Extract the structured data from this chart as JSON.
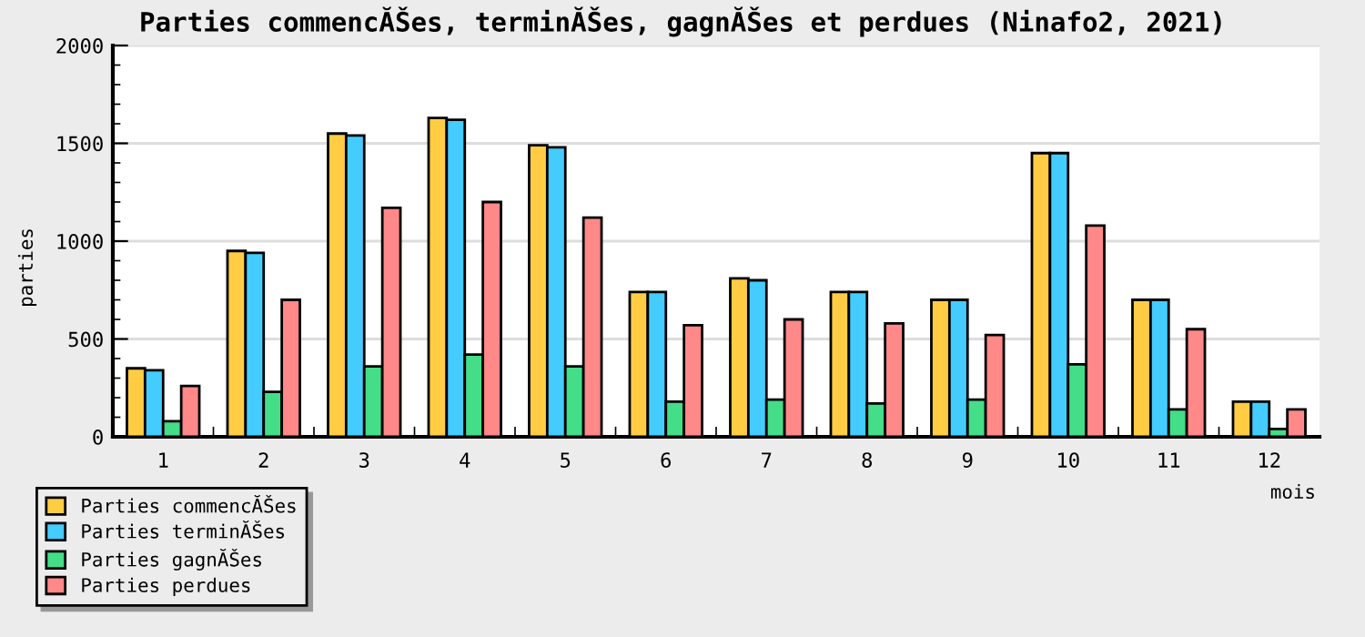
{
  "chart_data": {
    "type": "bar",
    "title": "Parties commencĂŠes, terminĂŠes, gagnĂŠes et perdues (Ninafo2, 2021)",
    "xlabel": "mois",
    "ylabel": "parties",
    "categories": [
      "1",
      "2",
      "3",
      "4",
      "5",
      "6",
      "7",
      "8",
      "9",
      "10",
      "11",
      "12"
    ],
    "series": [
      {
        "name": "Parties commencĂŠes",
        "color": "#ffcc44",
        "values": [
          350,
          950,
          1550,
          1630,
          1490,
          740,
          810,
          740,
          700,
          1450,
          700,
          180
        ]
      },
      {
        "name": "Parties terminĂŠes",
        "color": "#44ccff",
        "values": [
          340,
          940,
          1540,
          1620,
          1480,
          740,
          800,
          740,
          700,
          1450,
          700,
          180
        ]
      },
      {
        "name": "Parties gagnĂŠes",
        "color": "#44dd88",
        "values": [
          80,
          230,
          360,
          420,
          360,
          180,
          190,
          170,
          190,
          370,
          140,
          40
        ]
      },
      {
        "name": "Parties perdues",
        "color": "#ff8888",
        "values": [
          260,
          700,
          1170,
          1200,
          1120,
          570,
          600,
          580,
          520,
          1080,
          550,
          140
        ]
      }
    ],
    "ylim": [
      0,
      2000
    ],
    "yticks": [
      0,
      {
        "value": 100,
        "label": null
      },
      {
        "value": 200,
        "label": null
      },
      {
        "value": 300,
        "label": null
      },
      {
        "value": 400,
        "label": null
      },
      500,
      {
        "value": 600,
        "label": null
      },
      {
        "value": 700,
        "label": null
      },
      {
        "value": 800,
        "label": null
      },
      {
        "value": 900,
        "label": null
      },
      1000,
      {
        "value": 1100,
        "label": null
      },
      {
        "value": 1200,
        "label": null
      },
      {
        "value": 1300,
        "label": null
      },
      {
        "value": 1400,
        "label": null
      },
      1500,
      {
        "value": 1600,
        "label": null
      },
      {
        "value": 1700,
        "label": null
      },
      {
        "value": 1800,
        "label": null
      },
      {
        "value": 1900,
        "label": null
      },
      2000
    ],
    "grid": "y",
    "legend": "bottom left"
  }
}
